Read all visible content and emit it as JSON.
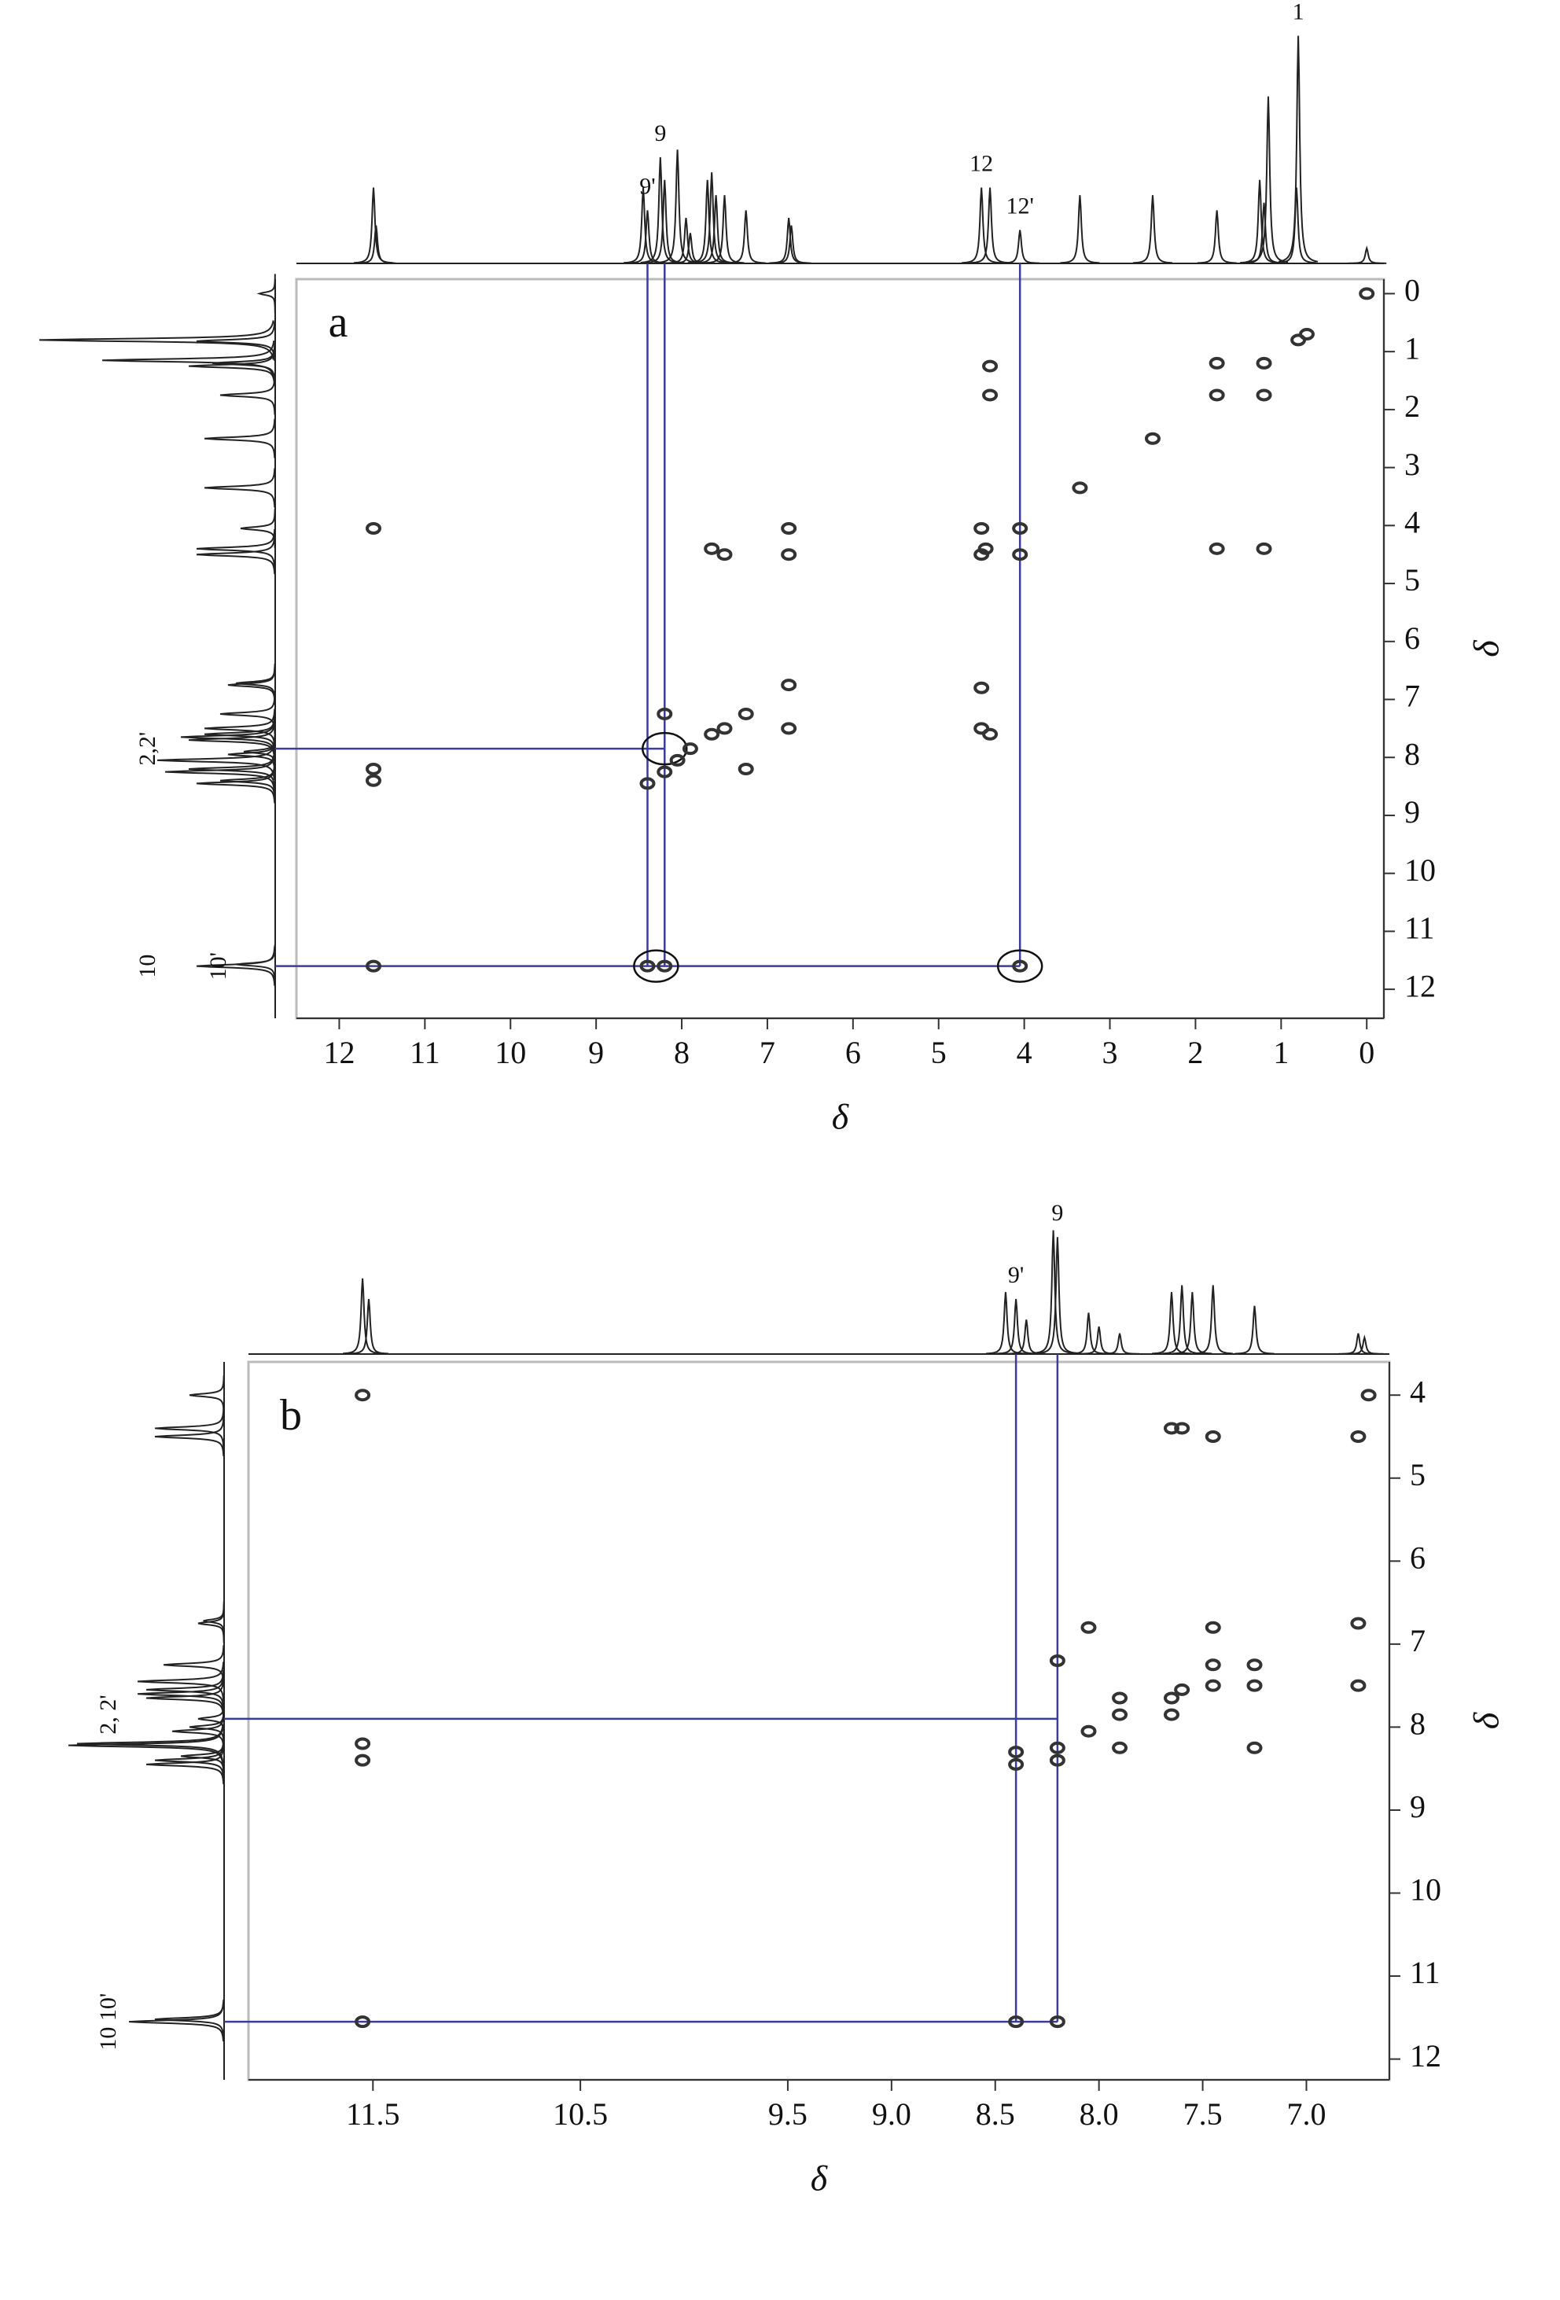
{
  "chart_data": [
    {
      "type": "scatter",
      "panel_label": "a",
      "x_label": "δ",
      "y_label": "δ",
      "xlim": [
        12.5,
        -0.2
      ],
      "ylim": [
        -0.25,
        12.5
      ],
      "xticks": [
        12,
        11,
        10,
        9,
        8,
        7,
        6,
        5,
        4,
        3,
        2,
        1,
        0
      ],
      "yticks": [
        0,
        1,
        2,
        3,
        4,
        5,
        6,
        7,
        8,
        9,
        10,
        11,
        12
      ],
      "color": "#333333",
      "guide_color": "#3c3c9c",
      "x": [
        0,
        0.8,
        1.2,
        1.75,
        2.5,
        3.35,
        4.05,
        4.05,
        4.45,
        4.5,
        4.5,
        6.75,
        7.25,
        7.5,
        7.65,
        7.9,
        8.05,
        8.2,
        8.4,
        11.6,
        1.75,
        1.2,
        4.4,
        4.4,
        11.6,
        11.6,
        11.6,
        8.2,
        7.65,
        6.75,
        6.75,
        4.5,
        4.5,
        4.4,
        1.75,
        1.2,
        8.2,
        8.4,
        4.05,
        7.25,
        7.5,
        6.75,
        0.7
      ],
      "y": [
        0,
        0.8,
        1.2,
        1.75,
        2.5,
        3.35,
        4.05,
        4.5,
        4.4,
        4.5,
        4.05,
        6.75,
        7.25,
        7.5,
        7.6,
        7.85,
        8.05,
        8.25,
        8.45,
        11.6,
        1.2,
        1.75,
        1.25,
        1.75,
        4.05,
        8.2,
        8.4,
        7.25,
        4.4,
        4.05,
        7.5,
        6.8,
        7.5,
        7.6,
        4.4,
        4.4,
        11.6,
        11.6,
        11.6,
        8.2,
        4.5,
        4.5,
        0.7
      ],
      "spectrum": {
        "x": [
          11.6,
          11.57,
          8.45,
          8.4,
          8.25,
          8.2,
          8.05,
          7.95,
          7.9,
          7.7,
          7.65,
          7.6,
          7.5,
          7.25,
          6.75,
          6.72,
          4.5,
          4.4,
          4.05,
          3.35,
          2.5,
          1.75,
          1.25,
          1.2,
          1.15,
          0.82,
          0.8,
          0
        ],
        "intensity": [
          50,
          25,
          50,
          35,
          70,
          55,
          75,
          30,
          20,
          55,
          60,
          45,
          45,
          35,
          30,
          25,
          50,
          50,
          22,
          45,
          45,
          35,
          55,
          40,
          110,
          50,
          150,
          10
        ]
      },
      "guides": {
        "vertical": [
          {
            "x": 8.4,
            "to": 11.6
          },
          {
            "x": 8.2,
            "to": 11.6
          },
          {
            "x": 4.05,
            "to": 11.6
          }
        ],
        "horizontal": [
          {
            "y": 7.85,
            "to": 8.2
          },
          {
            "y": 11.6,
            "to": 4.05
          }
        ]
      },
      "circles": [
        {
          "x": 8.2,
          "y": 7.85
        },
        {
          "x": 8.3,
          "y": 11.6
        },
        {
          "x": 4.05,
          "y": 11.6
        }
      ],
      "top_labels": [
        {
          "text": "9",
          "x": 8.25
        },
        {
          "text": "9'",
          "x": 8.4
        },
        {
          "text": "12",
          "x": 4.5
        },
        {
          "text": "12'",
          "x": 4.05
        },
        {
          "text": "1",
          "x": 0.8
        }
      ],
      "left_labels": [
        {
          "text": "2,2'",
          "y": 7.85
        },
        {
          "text": "10",
          "y": 11.6
        },
        {
          "text": "10'",
          "y": 11.6
        }
      ]
    },
    {
      "type": "scatter",
      "panel_label": "b",
      "x_label": "δ",
      "y_label": "δ",
      "xlim": [
        12.1,
        6.6
      ],
      "ylim": [
        3.6,
        12.25
      ],
      "xticks": [
        11.5,
        10.5,
        9.5,
        {
          "value": 9,
          "label": "9.0"
        },
        8.5,
        {
          "value": 8,
          "label": "8.0"
        },
        7.5,
        {
          "value": 7,
          "label": "7.0"
        }
      ],
      "yticks": [
        4,
        5,
        6,
        7,
        8,
        9,
        10,
        11,
        12
      ],
      "color": "#333333",
      "guide_color": "#3c3c9c",
      "x": [
        11.55,
        11.55,
        11.55,
        11.55,
        8.4,
        8.4,
        8.2,
        8.2,
        8.4,
        8.2,
        8.2,
        8.05,
        7.9,
        7.9,
        7.9,
        7.65,
        7.65,
        7.6,
        7.45,
        7.45,
        7.45,
        7.25,
        7.25,
        7.25,
        6.75,
        6.75,
        6.75,
        6.7,
        7.65,
        7.6,
        7.45,
        8.05
      ],
      "y": [
        4.0,
        8.2,
        8.4,
        11.55,
        8.3,
        8.45,
        8.25,
        8.4,
        11.55,
        11.55,
        7.2,
        8.05,
        7.85,
        7.65,
        8.25,
        7.65,
        7.85,
        7.55,
        7.5,
        7.25,
        6.8,
        7.25,
        7.5,
        8.25,
        6.75,
        7.5,
        4.5,
        4.0,
        4.4,
        4.4,
        4.5,
        6.8
      ],
      "spectrum": {
        "x": [
          11.55,
          11.52,
          8.45,
          8.4,
          8.35,
          8.22,
          8.2,
          8.05,
          8.0,
          7.9,
          7.65,
          7.6,
          7.55,
          7.45,
          7.25,
          6.75,
          6.72,
          4.5,
          4.4,
          4.0
        ],
        "intensity": [
          55,
          40,
          45,
          40,
          25,
          90,
          85,
          30,
          20,
          15,
          45,
          50,
          45,
          50,
          35,
          15,
          12,
          40,
          40,
          20
        ]
      },
      "guides": {
        "vertical": [
          {
            "x": 8.4,
            "to": 11.55
          },
          {
            "x": 8.2,
            "to": 11.55
          }
        ],
        "horizontal": [
          {
            "y": 7.9,
            "to": 8.2
          },
          {
            "y": 11.55,
            "to": 8.2
          }
        ]
      },
      "circles": [],
      "top_labels": [
        {
          "text": "9",
          "x": 8.2
        },
        {
          "text": "9'",
          "x": 8.4
        }
      ],
      "left_labels": [
        {
          "text": "2, 2'",
          "y": 7.85
        },
        {
          "text": "10 10'",
          "y": 11.55
        }
      ]
    }
  ]
}
